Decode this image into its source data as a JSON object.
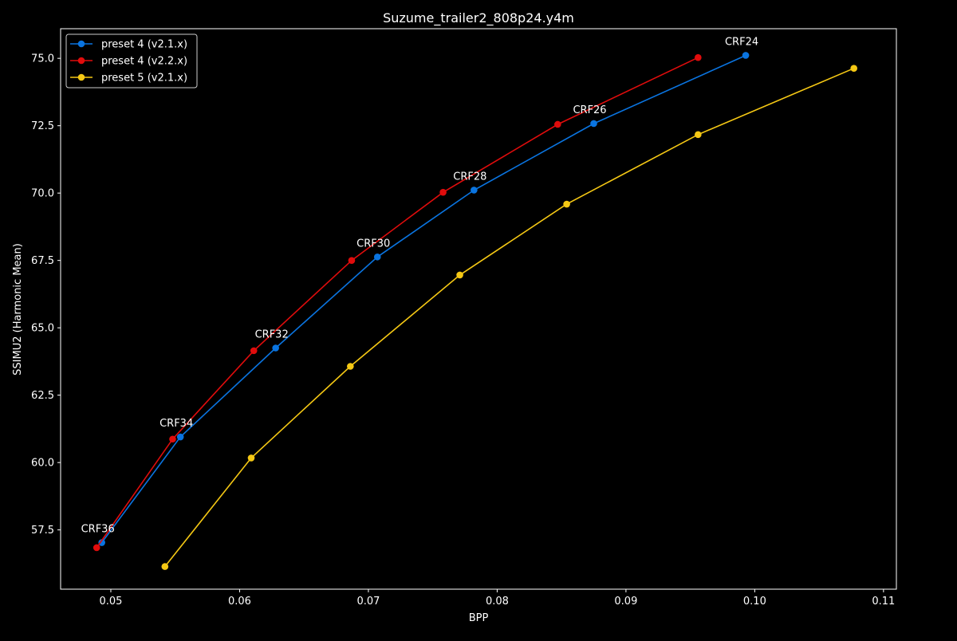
{
  "chart_data": {
    "type": "line",
    "title": "Suzume_trailer2_808p24.y4m",
    "xlabel": "BPP",
    "ylabel": "SSIMU2 (Harmonic Mean)",
    "xlim": [
      0.0461,
      0.111
    ],
    "ylim": [
      55.3,
      76.1
    ],
    "xticks": [
      0.05,
      0.06,
      0.07,
      0.08,
      0.09,
      0.1,
      0.11
    ],
    "xtick_labels": [
      "0.05",
      "0.06",
      "0.07",
      "0.08",
      "0.09",
      "0.10",
      "0.11"
    ],
    "yticks": [
      57.5,
      60.0,
      62.5,
      65.0,
      67.5,
      70.0,
      72.5,
      75.0
    ],
    "ytick_labels": [
      "57.5",
      "60.0",
      "62.5",
      "65.0",
      "67.5",
      "70.0",
      "72.5",
      "75.0"
    ],
    "grid": false,
    "legend_position": "upper-left",
    "colors": {
      "background": "#000000",
      "axes": "#ffffff",
      "text": "#ffffff"
    },
    "series": [
      {
        "name": "preset 4 (v2.1.x)",
        "color": "#0a74e0",
        "points": [
          {
            "x": 0.0493,
            "y": 57.03
          },
          {
            "x": 0.0554,
            "y": 60.95
          },
          {
            "x": 0.0628,
            "y": 64.25
          },
          {
            "x": 0.0707,
            "y": 67.63
          },
          {
            "x": 0.0782,
            "y": 70.11
          },
          {
            "x": 0.0875,
            "y": 72.58
          },
          {
            "x": 0.0993,
            "y": 75.11
          }
        ]
      },
      {
        "name": "preset 4 (v2.2.x)",
        "color": "#e00c0c",
        "points": [
          {
            "x": 0.0489,
            "y": 56.84
          },
          {
            "x": 0.0548,
            "y": 60.87
          },
          {
            "x": 0.0611,
            "y": 64.15
          },
          {
            "x": 0.0687,
            "y": 67.5
          },
          {
            "x": 0.0758,
            "y": 70.03
          },
          {
            "x": 0.0847,
            "y": 72.55
          },
          {
            "x": 0.0956,
            "y": 75.03
          }
        ]
      },
      {
        "name": "preset 5 (v2.1.x)",
        "color": "#f5c814",
        "points": [
          {
            "x": 0.0542,
            "y": 56.14
          },
          {
            "x": 0.0609,
            "y": 60.17
          },
          {
            "x": 0.0686,
            "y": 63.57
          },
          {
            "x": 0.0771,
            "y": 66.96
          },
          {
            "x": 0.0854,
            "y": 69.59
          },
          {
            "x": 0.0956,
            "y": 72.17
          },
          {
            "x": 0.1077,
            "y": 74.63
          }
        ]
      }
    ],
    "annotations": [
      {
        "text": "CRF36",
        "x": 0.0493,
        "y": 57.03
      },
      {
        "text": "CRF34",
        "x": 0.0554,
        "y": 60.95
      },
      {
        "text": "CRF32",
        "x": 0.0628,
        "y": 64.25
      },
      {
        "text": "CRF30",
        "x": 0.0707,
        "y": 67.63
      },
      {
        "text": "CRF28",
        "x": 0.0782,
        "y": 70.11
      },
      {
        "text": "CRF26",
        "x": 0.0875,
        "y": 72.58
      },
      {
        "text": "CRF24",
        "x": 0.0993,
        "y": 75.11
      }
    ]
  }
}
